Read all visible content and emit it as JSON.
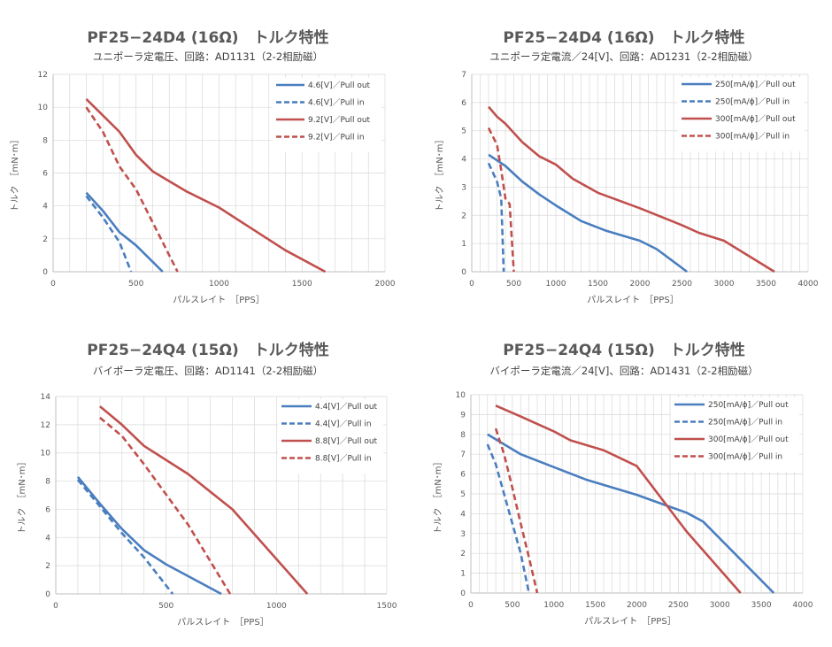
{
  "colors": {
    "blue": "#4a7ebf",
    "red": "#c0504d",
    "grid": "#d9d9d9",
    "axis": "#bfbfbf"
  },
  "chart_data": [
    {
      "type": "line",
      "title": "PF25−24D4 (16Ω)　トルク特性",
      "subtitle": "ユニポーラ定電圧、回路：AD1131（2-2相励磁）",
      "xlabel": "パルスレイト　［PPS］",
      "ylabel": "トルク　［mN･m］",
      "xlim": [
        0,
        2000
      ],
      "ylim": [
        0,
        12
      ],
      "xticks": [
        0,
        500,
        1000,
        1500,
        2000
      ],
      "xtick_labels": [
        "0",
        "500",
        "1000",
        "1500",
        "2000"
      ],
      "yticks": [
        0,
        2,
        4,
        6,
        8,
        10,
        12
      ],
      "ytick_labels": [
        "0",
        "2",
        "4",
        "6",
        "8",
        "10",
        "12"
      ],
      "grid": true,
      "legend": "top-right",
      "series": [
        {
          "name": "4.6[V]／Pull out",
          "color": "blue",
          "dash": false,
          "points": [
            [
              200,
              4.8
            ],
            [
              300,
              3.7
            ],
            [
              400,
              2.4
            ],
            [
              500,
              1.6
            ],
            [
              660,
              0
            ]
          ]
        },
        {
          "name": "4.6[V]／Pull in",
          "color": "blue",
          "dash": true,
          "points": [
            [
              200,
              4.6
            ],
            [
              300,
              3.3
            ],
            [
              400,
              1.8
            ],
            [
              470,
              0
            ]
          ]
        },
        {
          "name": "9.2[V]／Pull out",
          "color": "red",
          "dash": false,
          "points": [
            [
              200,
              10.5
            ],
            [
              400,
              8.5
            ],
            [
              500,
              7.1
            ],
            [
              600,
              6.1
            ],
            [
              800,
              4.9
            ],
            [
              1000,
              3.9
            ],
            [
              1200,
              2.6
            ],
            [
              1400,
              1.3
            ],
            [
              1640,
              0
            ]
          ]
        },
        {
          "name": "9.2[V]／Pull in",
          "color": "red",
          "dash": true,
          "points": [
            [
              200,
              10.0
            ],
            [
              300,
              8.5
            ],
            [
              400,
              6.4
            ],
            [
              500,
              5.0
            ],
            [
              600,
              3.0
            ],
            [
              750,
              0
            ]
          ]
        }
      ]
    },
    {
      "type": "line",
      "title": "PF25−24D4 (16Ω)　トルク特性",
      "subtitle": "ユニポーラ定電流／24[V]、回路：AD1231（2-2相励磁）",
      "xlabel": "パルスレイト　［PPS］",
      "ylabel": "トルク　［mN･m］",
      "xlim": [
        0,
        4000
      ],
      "ylim": [
        0,
        7
      ],
      "xticks": [
        0,
        500,
        1000,
        1500,
        2000,
        2500,
        3000,
        3500,
        4000
      ],
      "xtick_labels": [
        "0",
        "500",
        "1000",
        "1500",
        "2000",
        "2500",
        "3000",
        "3500",
        "4000"
      ],
      "yticks": [
        0,
        1,
        2,
        3,
        4,
        5,
        6,
        7
      ],
      "ytick_labels": [
        "0",
        "1",
        "2",
        "3",
        "4",
        "5",
        "6",
        "7"
      ],
      "grid": true,
      "legend": "top-right",
      "series": [
        {
          "name": "250[mA/ϕ]／Pull out",
          "color": "blue",
          "dash": false,
          "points": [
            [
              200,
              4.15
            ],
            [
              400,
              3.75
            ],
            [
              600,
              3.2
            ],
            [
              800,
              2.75
            ],
            [
              1000,
              2.35
            ],
            [
              1300,
              1.8
            ],
            [
              1600,
              1.45
            ],
            [
              2000,
              1.1
            ],
            [
              2200,
              0.8
            ],
            [
              2560,
              0
            ]
          ]
        },
        {
          "name": "250[mA/ϕ]／Pull in",
          "color": "blue",
          "dash": true,
          "points": [
            [
              200,
              3.85
            ],
            [
              300,
              3.2
            ],
            [
              350,
              2.6
            ],
            [
              380,
              0
            ]
          ]
        },
        {
          "name": "300[mA/ϕ]／Pull out",
          "color": "red",
          "dash": false,
          "points": [
            [
              200,
              5.85
            ],
            [
              300,
              5.5
            ],
            [
              400,
              5.25
            ],
            [
              600,
              4.6
            ],
            [
              800,
              4.1
            ],
            [
              1000,
              3.8
            ],
            [
              1200,
              3.3
            ],
            [
              1500,
              2.8
            ],
            [
              2000,
              2.25
            ],
            [
              2500,
              1.65
            ],
            [
              2700,
              1.38
            ],
            [
              3000,
              1.1
            ],
            [
              3600,
              0
            ]
          ]
        },
        {
          "name": "300[mA/ϕ]／Pull in",
          "color": "red",
          "dash": true,
          "points": [
            [
              200,
              5.1
            ],
            [
              300,
              4.5
            ],
            [
              350,
              3.6
            ],
            [
              400,
              2.6
            ],
            [
              450,
              2.4
            ],
            [
              500,
              0
            ]
          ]
        }
      ]
    },
    {
      "type": "line",
      "title": "PF25−24Q4 (15Ω)　トルク特性",
      "subtitle": "バイポーラ定電圧、回路：AD1141（2-2相励磁）",
      "xlabel": "パルスレイト　［PPS］",
      "ylabel": "トルク　［mN･m］",
      "xlim": [
        0,
        1500
      ],
      "ylim": [
        0,
        14
      ],
      "xticks": [
        0,
        500,
        1000,
        1500
      ],
      "xtick_labels": [
        "0",
        "500",
        "1000",
        "1500"
      ],
      "yticks": [
        0,
        2,
        4,
        6,
        8,
        10,
        12,
        14
      ],
      "ytick_labels": [
        "0",
        "2",
        "4",
        "6",
        "8",
        "10",
        "12",
        "14"
      ],
      "grid": true,
      "legend": "top-right",
      "series": [
        {
          "name": "4.4[V]／Pull out",
          "color": "blue",
          "dash": false,
          "points": [
            [
              100,
              8.3
            ],
            [
              200,
              6.4
            ],
            [
              300,
              4.6
            ],
            [
              400,
              3.1
            ],
            [
              500,
              2.1
            ],
            [
              750,
              0
            ]
          ]
        },
        {
          "name": "4.4[V]／Pull in",
          "color": "blue",
          "dash": true,
          "points": [
            [
              100,
              8.1
            ],
            [
              200,
              6.2
            ],
            [
              300,
              4.3
            ],
            [
              400,
              2.6
            ],
            [
              530,
              0
            ]
          ]
        },
        {
          "name": "8.8[V]／Pull out",
          "color": "red",
          "dash": false,
          "points": [
            [
              200,
              13.3
            ],
            [
              300,
              12.0
            ],
            [
              400,
              10.5
            ],
            [
              600,
              8.5
            ],
            [
              800,
              6.0
            ],
            [
              1140,
              0
            ]
          ]
        },
        {
          "name": "8.8[V]／Pull in",
          "color": "red",
          "dash": true,
          "points": [
            [
              200,
              12.5
            ],
            [
              300,
              11.2
            ],
            [
              400,
              9.2
            ],
            [
              600,
              4.9
            ],
            [
              790,
              0
            ]
          ]
        }
      ]
    },
    {
      "type": "line",
      "title": "PF25−24Q4 (15Ω)　トルク特性",
      "subtitle": "バイポーラ定電流／24[V]、回路：AD1431（2-2相励磁）",
      "xlabel": "パルスレイト　［PPS］",
      "ylabel": "トルク　［mN･m］",
      "xlim": [
        0,
        4000
      ],
      "ylim": [
        0,
        10
      ],
      "xticks": [
        0,
        500,
        1000,
        1500,
        2000,
        2500,
        3000,
        3500,
        4000
      ],
      "xtick_labels": [
        "0",
        "500",
        "1000",
        "1500",
        "2000",
        "2500",
        "3000",
        "3500",
        "4000"
      ],
      "yticks": [
        0,
        1,
        2,
        3,
        4,
        5,
        6,
        7,
        8,
        9,
        10
      ],
      "ytick_labels": [
        "0",
        "1",
        "2",
        "3",
        "4",
        "5",
        "6",
        "7",
        "8",
        "9",
        "10"
      ],
      "grid": true,
      "legend": "top-right",
      "series": [
        {
          "name": "250[mA/ϕ]／Pull out",
          "color": "blue",
          "dash": false,
          "points": [
            [
              200,
              8.0
            ],
            [
              400,
              7.5
            ],
            [
              600,
              7.0
            ],
            [
              1000,
              6.35
            ],
            [
              1400,
              5.7
            ],
            [
              2000,
              4.95
            ],
            [
              2400,
              4.35
            ],
            [
              2600,
              4.05
            ],
            [
              2800,
              3.6
            ],
            [
              3650,
              0
            ]
          ]
        },
        {
          "name": "250[mA/ϕ]／Pull in",
          "color": "blue",
          "dash": true,
          "points": [
            [
              200,
              7.5
            ],
            [
              300,
              6.5
            ],
            [
              400,
              5.0
            ],
            [
              500,
              3.5
            ],
            [
              600,
              2.0
            ],
            [
              700,
              0
            ]
          ]
        },
        {
          "name": "300[mA/ϕ]／Pull out",
          "color": "red",
          "dash": false,
          "points": [
            [
              300,
              9.45
            ],
            [
              600,
              8.9
            ],
            [
              1000,
              8.15
            ],
            [
              1200,
              7.7
            ],
            [
              1600,
              7.2
            ],
            [
              2000,
              6.4
            ],
            [
              2200,
              5.3
            ],
            [
              2400,
              4.2
            ],
            [
              2600,
              3.1
            ],
            [
              3250,
              0
            ]
          ]
        },
        {
          "name": "300[mA/ϕ]／Pull in",
          "color": "red",
          "dash": true,
          "points": [
            [
              300,
              8.3
            ],
            [
              400,
              7.0
            ],
            [
              500,
              5.3
            ],
            [
              600,
              3.5
            ],
            [
              700,
              1.8
            ],
            [
              800,
              0
            ]
          ]
        }
      ]
    }
  ]
}
